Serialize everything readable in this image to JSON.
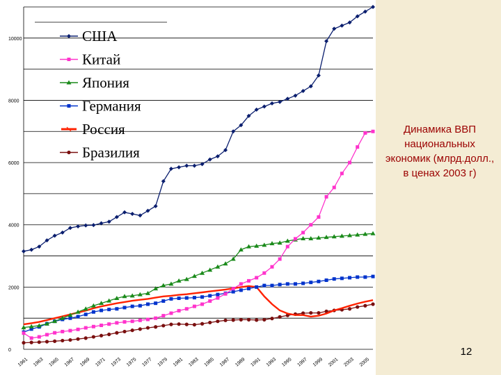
{
  "slide": {
    "title_text": "Динамика ВВП национальных экономик (млрд.долл., в ценах 2003 г)",
    "page_number": "12"
  },
  "chart_data": {
    "type": "line",
    "title": "Динамика ВВП национальных экономик (млрд.долл., в ценах 2003 г)",
    "xlabel": "",
    "ylabel": "",
    "grid": true,
    "legend_position": "top-left",
    "ylim": [
      0,
      11000
    ],
    "xlim": [
      1961,
      2006
    ],
    "y_ticks": [
      0,
      2000,
      4000,
      6000,
      8000,
      10000
    ],
    "y_tick_labels": [
      "0",
      "2000",
      "4000",
      "6000",
      "8000",
      "10000"
    ],
    "x_tick_labels": [
      "1961",
      "1963",
      "1965",
      "1967",
      "1969",
      "1971",
      "1973",
      "1975",
      "1977",
      "1979",
      "1981",
      "1983",
      "1985",
      "1987",
      "1989",
      "1991",
      "1993",
      "1995",
      "1997",
      "1999",
      "2001",
      "2003",
      "2005"
    ],
    "x": [
      1961,
      1962,
      1963,
      1964,
      1965,
      1966,
      1967,
      1968,
      1969,
      1970,
      1971,
      1972,
      1973,
      1974,
      1975,
      1976,
      1977,
      1978,
      1979,
      1980,
      1981,
      1982,
      1983,
      1984,
      1985,
      1986,
      1987,
      1988,
      1989,
      1990,
      1991,
      1992,
      1993,
      1994,
      1995,
      1996,
      1997,
      1998,
      1999,
      2000,
      2001,
      2002,
      2003,
      2004,
      2005,
      2006
    ],
    "series": [
      {
        "name": "США",
        "color": "#0a1e6e",
        "marker": "diamond",
        "values": [
          3150,
          3200,
          3300,
          3500,
          3650,
          3750,
          3900,
          3950,
          3980,
          3990,
          4050,
          4100,
          4250,
          4400,
          4350,
          4300,
          4450,
          4600,
          5400,
          5800,
          5850,
          5900,
          5900,
          5950,
          6100,
          6200,
          6400,
          7000,
          7200,
          7500,
          7700,
          7800,
          7900,
          7950,
          8050,
          8150,
          8300,
          8450,
          8800,
          9900,
          10300,
          10400,
          10500,
          10700,
          10850,
          11000
        ]
      },
      {
        "name": "Китай",
        "color": "#ff33cc",
        "marker": "square",
        "values": [
          520,
          360,
          400,
          470,
          530,
          570,
          600,
          640,
          690,
          730,
          770,
          810,
          850,
          880,
          900,
          930,
          960,
          1000,
          1080,
          1160,
          1240,
          1300,
          1380,
          1450,
          1550,
          1650,
          1780,
          1950,
          2100,
          2200,
          2300,
          2450,
          2650,
          2900,
          3300,
          3550,
          3750,
          4000,
          4250,
          4900,
          5200,
          5650,
          6000,
          6500,
          6950,
          7000
        ]
      },
      {
        "name": "Япония",
        "color": "#1a8a1a",
        "marker": "triangle",
        "values": [
          700,
          730,
          760,
          820,
          900,
          1000,
          1100,
          1200,
          1300,
          1400,
          1480,
          1560,
          1640,
          1700,
          1720,
          1760,
          1800,
          1950,
          2050,
          2100,
          2200,
          2250,
          2350,
          2450,
          2550,
          2650,
          2750,
          2900,
          3200,
          3300,
          3320,
          3350,
          3400,
          3420,
          3480,
          3520,
          3560,
          3560,
          3580,
          3600,
          3620,
          3640,
          3660,
          3680,
          3700,
          3720
        ]
      },
      {
        "name": "Германия",
        "color": "#0033cc",
        "marker": "square",
        "values": [
          550,
          650,
          720,
          820,
          900,
          960,
          1000,
          1050,
          1120,
          1200,
          1250,
          1280,
          1300,
          1340,
          1380,
          1400,
          1450,
          1480,
          1550,
          1620,
          1640,
          1650,
          1660,
          1680,
          1720,
          1760,
          1800,
          1850,
          1900,
          1950,
          2000,
          2050,
          2050,
          2080,
          2100,
          2100,
          2120,
          2150,
          2180,
          2220,
          2260,
          2280,
          2300,
          2320,
          2320,
          2340
        ]
      },
      {
        "name": "Россия",
        "color": "#ff2200",
        "marker": "line",
        "values": [
          800,
          840,
          880,
          940,
          1000,
          1060,
          1120,
          1180,
          1240,
          1320,
          1380,
          1430,
          1480,
          1520,
          1560,
          1590,
          1620,
          1660,
          1700,
          1720,
          1750,
          1770,
          1800,
          1830,
          1860,
          1890,
          1920,
          1960,
          2000,
          2030,
          2000,
          1700,
          1450,
          1250,
          1150,
          1100,
          1100,
          1050,
          1080,
          1150,
          1250,
          1320,
          1400,
          1470,
          1530,
          1580
        ]
      },
      {
        "name": "Бразилия",
        "color": "#7a0f0f",
        "marker": "circle",
        "values": [
          210,
          220,
          230,
          245,
          260,
          280,
          300,
          330,
          360,
          400,
          440,
          480,
          530,
          570,
          610,
          650,
          690,
          720,
          760,
          800,
          810,
          800,
          790,
          820,
          860,
          900,
          930,
          940,
          950,
          950,
          940,
          950,
          990,
          1040,
          1090,
          1130,
          1160,
          1170,
          1170,
          1220,
          1250,
          1270,
          1300,
          1360,
          1400,
          1450
        ]
      }
    ]
  }
}
